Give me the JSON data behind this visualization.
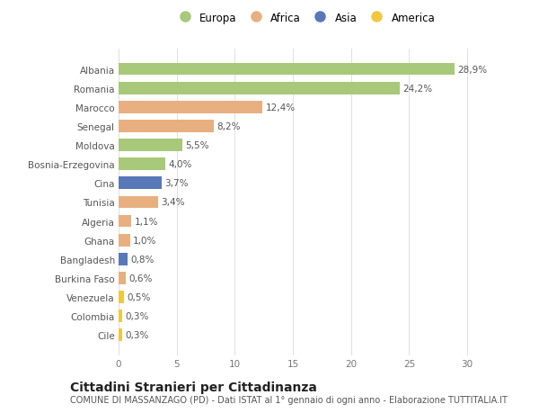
{
  "categories": [
    "Albania",
    "Romania",
    "Marocco",
    "Senegal",
    "Moldova",
    "Bosnia-Erzegovina",
    "Cina",
    "Tunisia",
    "Algeria",
    "Ghana",
    "Bangladesh",
    "Burkina Faso",
    "Venezuela",
    "Colombia",
    "Cile"
  ],
  "values": [
    28.9,
    24.2,
    12.4,
    8.2,
    5.5,
    4.0,
    3.7,
    3.4,
    1.1,
    1.0,
    0.8,
    0.6,
    0.5,
    0.3,
    0.3
  ],
  "labels": [
    "28,9%",
    "24,2%",
    "12,4%",
    "8,2%",
    "5,5%",
    "4,0%",
    "3,7%",
    "3,4%",
    "1,1%",
    "1,0%",
    "0,8%",
    "0,6%",
    "0,5%",
    "0,3%",
    "0,3%"
  ],
  "continents": [
    "Europa",
    "Europa",
    "Africa",
    "Africa",
    "Europa",
    "Europa",
    "Asia",
    "Africa",
    "Africa",
    "Africa",
    "Asia",
    "Africa",
    "America",
    "America",
    "America"
  ],
  "colors": {
    "Europa": "#a8c87a",
    "Africa": "#e8b080",
    "Asia": "#5878b8",
    "America": "#f0c840"
  },
  "legend_order": [
    "Europa",
    "Africa",
    "Asia",
    "America"
  ],
  "title": "Cittadini Stranieri per Cittadinanza",
  "subtitle": "COMUNE DI MASSANZAGO (PD) - Dati ISTAT al 1° gennaio di ogni anno - Elaborazione TUTTITALIA.IT",
  "xlim": [
    0,
    32
  ],
  "xticks": [
    0,
    5,
    10,
    15,
    20,
    25,
    30
  ],
  "bg_color": "#ffffff",
  "plot_bg_color": "#ffffff",
  "grid_color": "#e0e0e0",
  "label_fontsize": 7.5,
  "ytick_fontsize": 7.5,
  "xtick_fontsize": 7.5,
  "title_fontsize": 10,
  "subtitle_fontsize": 7,
  "bar_height": 0.65,
  "legend_fontsize": 8.5
}
